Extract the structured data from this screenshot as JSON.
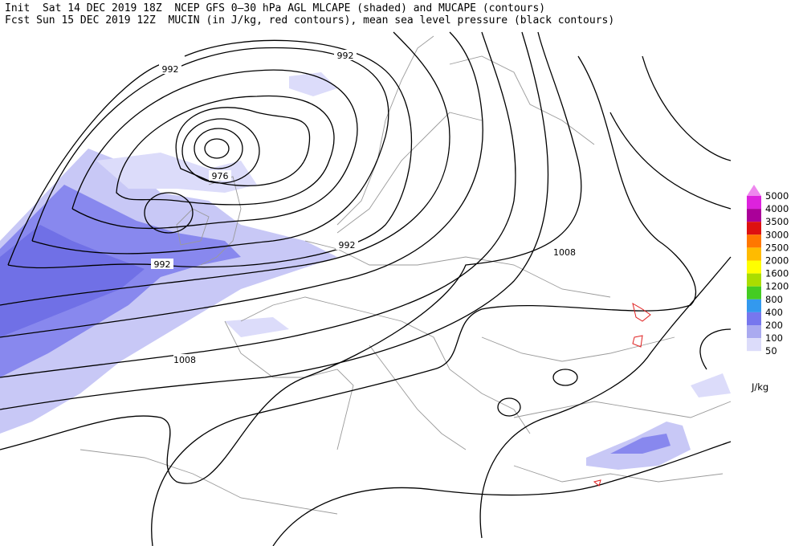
{
  "header": {
    "line1": "Init  Sat 14 DEC 2019 18Z  NCEP GFS 0–30 hPa AGL MLCAPE (shaded) and MUCAPE (contours)",
    "line2": "Fcst Sun 15 DEC 2019 12Z  MUCIN (in J/kg, red contours), mean sea level pressure (black contours)"
  },
  "contour_labels": [
    992,
    992,
    976,
    992,
    992,
    1008,
    1008
  ],
  "colorbar": {
    "levels": [
      5000,
      4000,
      3500,
      3000,
      2500,
      2000,
      1600,
      1200,
      800,
      400,
      200,
      100,
      50
    ],
    "colors": [
      "#ee88ee",
      "#dd22dd",
      "#aa0099",
      "#dd1111",
      "#ff7700",
      "#ffbb00",
      "#ffff00",
      "#aadd00",
      "#44cc22",
      "#3399ee",
      "#7777ee",
      "#aaaaf0",
      "#dcdcfa"
    ],
    "unit": "J/kg"
  }
}
